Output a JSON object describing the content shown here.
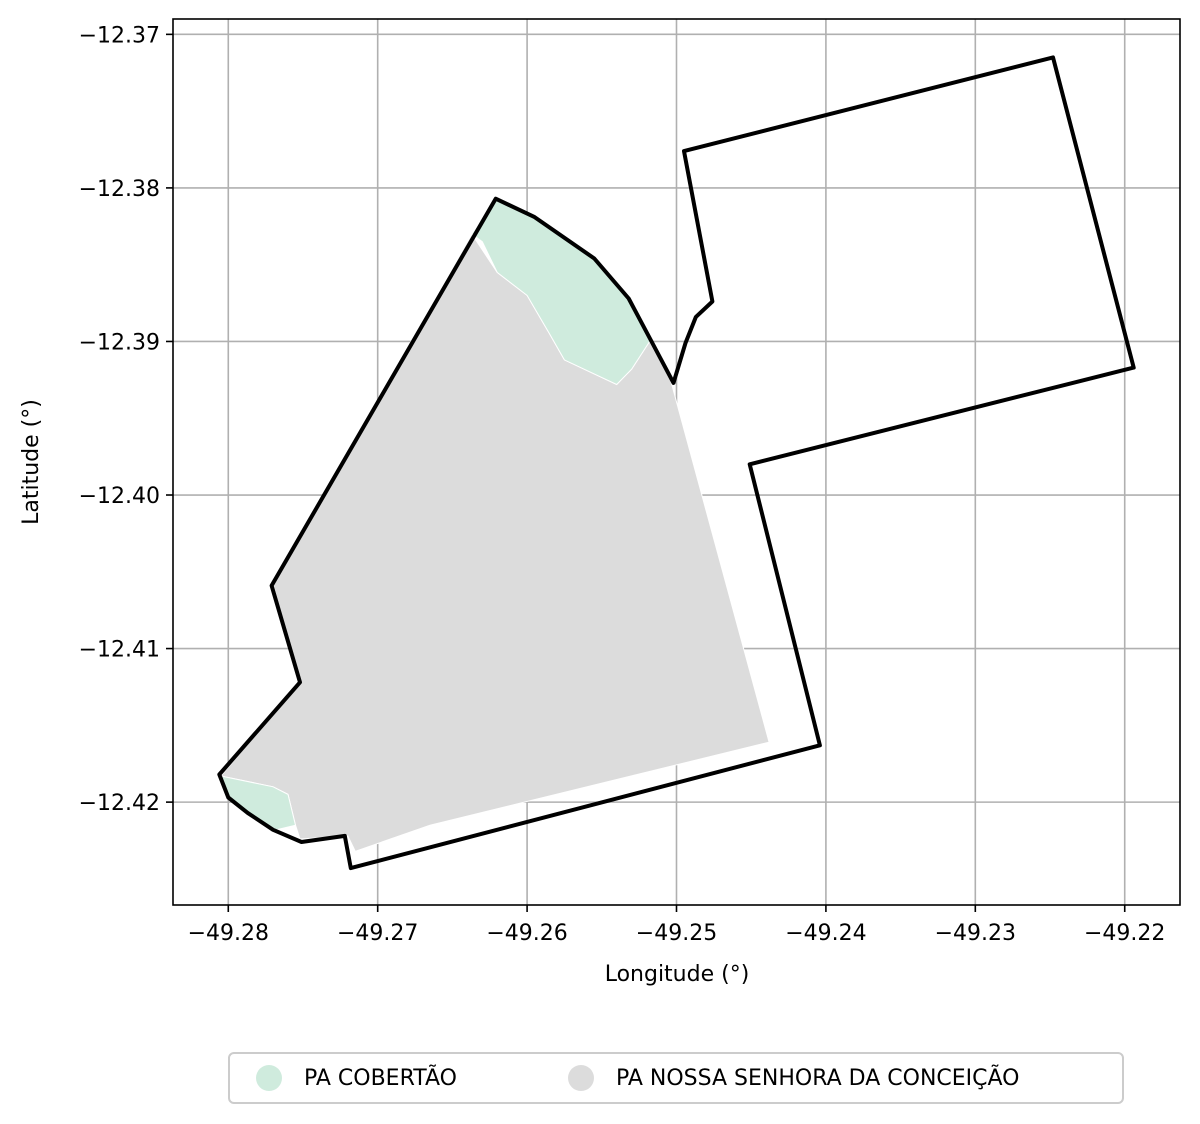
{
  "chart_data": {
    "type": "map",
    "xlabel": "Longitude (°)",
    "ylabel": "Latitude (°)",
    "xlim": [
      -49.2837,
      -49.2163
    ],
    "ylim": [
      -12.4267,
      -12.369
    ],
    "x_ticks": [
      -49.28,
      -49.27,
      -49.26,
      -49.25,
      -49.24,
      -49.23,
      -49.22
    ],
    "y_ticks": [
      -12.37,
      -12.38,
      -12.39,
      -12.4,
      -12.41,
      -12.42
    ],
    "x_tick_labels": [
      "−49.28",
      "−49.27",
      "−49.26",
      "−49.25",
      "−49.24",
      "−49.23",
      "−49.22"
    ],
    "y_tick_labels": [
      "−12.37",
      "−12.38",
      "−12.39",
      "−12.40",
      "−12.41",
      "−12.42"
    ],
    "grid": true,
    "legend_position": "bottom-center",
    "layers": [
      {
        "name": "PA COBERTÃO",
        "color": "#cfebdd",
        "parts": [
          [
            [
              -49.2621,
              -12.3807
            ],
            [
              -49.2595,
              -12.3819
            ],
            [
              -49.2555,
              -12.3846
            ],
            [
              -49.2532,
              -12.3872
            ],
            [
              -49.2518,
              -12.39
            ],
            [
              -49.253,
              -12.3918
            ],
            [
              -49.254,
              -12.3928
            ],
            [
              -49.2575,
              -12.3912
            ],
            [
              -49.2585,
              -12.3895
            ],
            [
              -49.26,
              -12.387
            ],
            [
              -49.262,
              -12.3855
            ],
            [
              -49.263,
              -12.3835
            ],
            [
              -49.2637,
              -12.383
            ]
          ],
          [
            [
              -49.2805,
              -12.4183
            ],
            [
              -49.277,
              -12.419
            ],
            [
              -49.276,
              -12.4195
            ],
            [
              -49.2755,
              -12.4215
            ],
            [
              -49.2768,
              -12.4218
            ],
            [
              -49.2782,
              -12.421
            ],
            [
              -49.28,
              -12.4197
            ]
          ]
        ]
      },
      {
        "name": "PA NOSSA SENHORA DA CONCEIÇÃO",
        "color": "#dcdcdc",
        "parts": [
          [
            [
              -49.2637,
              -12.383
            ],
            [
              -49.262,
              -12.3855
            ],
            [
              -49.26,
              -12.387
            ],
            [
              -49.2585,
              -12.3895
            ],
            [
              -49.2575,
              -12.3912
            ],
            [
              -49.254,
              -12.3928
            ],
            [
              -49.253,
              -12.3918
            ],
            [
              -49.2518,
              -12.39
            ],
            [
              -49.2504,
              -12.3925
            ],
            [
              -49.2438,
              -12.4161
            ],
            [
              -49.2665,
              -12.4215
            ],
            [
              -49.2715,
              -12.4232
            ],
            [
              -49.272,
              -12.4222
            ],
            [
              -49.2752,
              -12.4224
            ],
            [
              -49.2755,
              -12.4215
            ],
            [
              -49.276,
              -12.4195
            ],
            [
              -49.277,
              -12.419
            ],
            [
              -49.2805,
              -12.4183
            ],
            [
              -49.2752,
              -12.4122
            ],
            [
              -49.277,
              -12.4058
            ]
          ]
        ]
      }
    ],
    "boundary": [
      [
        -49.2621,
        -12.3807
      ],
      [
        -49.2595,
        -12.3819
      ],
      [
        -49.2555,
        -12.3846
      ],
      [
        -49.2532,
        -12.3872
      ],
      [
        -49.2502,
        -12.3927
      ],
      [
        -49.2494,
        -12.3901
      ],
      [
        -49.2487,
        -12.3884
      ],
      [
        -49.2476,
        -12.3874
      ],
      [
        -49.2495,
        -12.3776
      ],
      [
        -49.2248,
        -12.3715
      ],
      [
        -49.2194,
        -12.3917
      ],
      [
        -49.2451,
        -12.398
      ],
      [
        -49.2404,
        -12.4163
      ],
      [
        -49.2718,
        -12.4243
      ],
      [
        -49.2722,
        -12.4222
      ],
      [
        -49.2751,
        -12.4226
      ],
      [
        -49.277,
        -12.4218
      ],
      [
        -49.2787,
        -12.4207
      ],
      [
        -49.28,
        -12.4197
      ],
      [
        -49.2806,
        -12.4182
      ],
      [
        -49.2752,
        -12.4122
      ],
      [
        -49.2771,
        -12.4059
      ]
    ]
  }
}
